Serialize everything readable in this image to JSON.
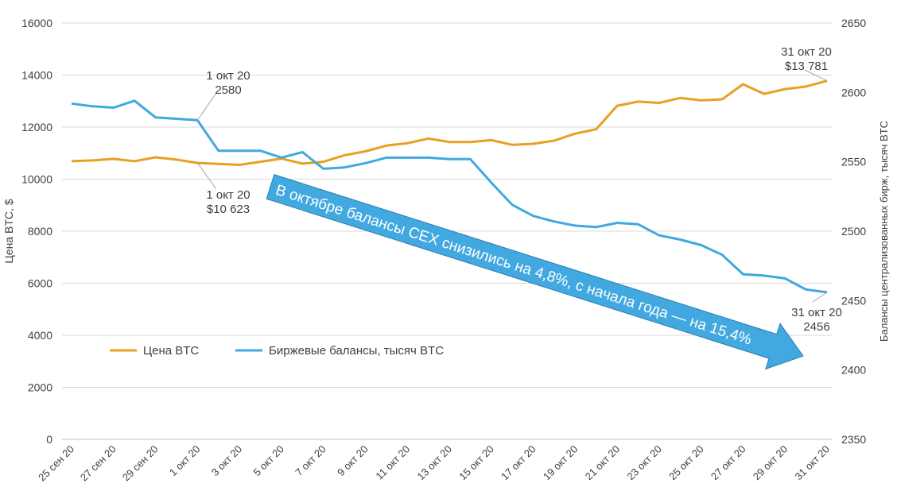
{
  "chart_data": {
    "type": "line",
    "x": [
      "25 сен 20",
      "26 сен 20",
      "27 сен 20",
      "28 сен 20",
      "29 сен 20",
      "30 сен 20",
      "1 окт 20",
      "2 окт 20",
      "3 окт 20",
      "4 окт 20",
      "5 окт 20",
      "6 окт 20",
      "7 окт 20",
      "8 окт 20",
      "9 окт 20",
      "10 окт 20",
      "11 окт 20",
      "12 окт 20",
      "13 окт 20",
      "14 окт 20",
      "15 окт 20",
      "16 окт 20",
      "17 окт 20",
      "18 окт 20",
      "19 окт 20",
      "20 окт 20",
      "21 окт 20",
      "22 окт 20",
      "23 окт 20",
      "24 окт 20",
      "25 окт 20",
      "26 окт 20",
      "27 окт 20",
      "28 окт 20",
      "29 окт 20",
      "30 окт 20",
      "31 окт 20"
    ],
    "xtick_labels": [
      "25 сен 20",
      "27 сен 20",
      "29 сен 20",
      "1 окт 20",
      "3 окт 20",
      "5 окт 20",
      "7 окт 20",
      "9 окт 20",
      "11 окт 20",
      "13 окт 20",
      "15 окт 20",
      "17 окт 20",
      "19 окт 20",
      "21 окт 20",
      "23 окт 20",
      "25 окт 20",
      "27 окт 20",
      "29 окт 20",
      "31 окт 20"
    ],
    "ylabel": "Цена BTC, $",
    "y2label": "Балансы централизованных бирж, тысяч BTC",
    "ylim": [
      0,
      16000
    ],
    "y2lim": [
      2350,
      2650
    ],
    "yticks": [
      0,
      2000,
      4000,
      6000,
      8000,
      10000,
      12000,
      14000,
      16000
    ],
    "y2ticks": [
      2350,
      2400,
      2450,
      2500,
      2550,
      2600,
      2650
    ],
    "grid": true,
    "legend_placement": "bottom-left",
    "series": [
      {
        "name": "Цена BTC",
        "axis": "left",
        "color": "#E8A023",
        "values": [
          10690,
          10720,
          10780,
          10690,
          10840,
          10750,
          10623,
          10590,
          10550,
          10670,
          10790,
          10600,
          10670,
          10920,
          11070,
          11290,
          11380,
          11560,
          11430,
          11430,
          11500,
          11320,
          11360,
          11480,
          11750,
          11920,
          12820,
          12980,
          12930,
          13120,
          13030,
          13070,
          13650,
          13280,
          13460,
          13560,
          13781
        ]
      },
      {
        "name": "Биржевые балансы, тысяч BTC",
        "axis": "right",
        "color": "#41A8E0",
        "values": [
          2592,
          2590,
          2589,
          2594,
          2582,
          2581,
          2580,
          2558,
          2558,
          2558,
          2553,
          2557,
          2545,
          2546,
          2549,
          2553,
          2553,
          2553,
          2552,
          2552,
          2535,
          2519,
          2511,
          2507,
          2504,
          2503,
          2506,
          2505,
          2497,
          2494,
          2490,
          2483,
          2469,
          2468,
          2466,
          2458,
          2456
        ]
      }
    ],
    "annotations": [
      {
        "lines": [
          "1 окт 20",
          "2580"
        ],
        "series": 1,
        "index": 6
      },
      {
        "lines": [
          "1 окт 20",
          "$10 623"
        ],
        "series": 0,
        "index": 6
      },
      {
        "lines": [
          "31 окт 20",
          "$13 781"
        ],
        "series": 0,
        "index": 36
      },
      {
        "lines": [
          "31 окт 20",
          "2456"
        ],
        "series": 1,
        "index": 36
      }
    ],
    "arrow_text": "В октябре балансы CEX снизились на 4,8%, с начала года — на 15,4%",
    "arrow_color": "#41A8E0"
  }
}
